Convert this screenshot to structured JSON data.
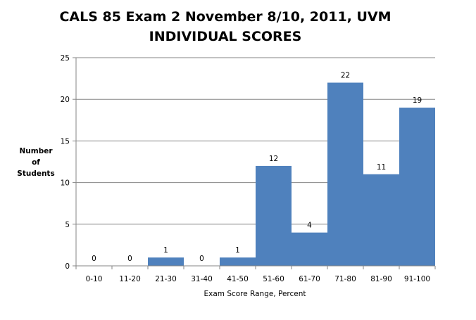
{
  "chart_data": {
    "type": "bar",
    "title_lines": [
      "CALS 85 Exam 2 November 8/10, 2011, UVM",
      "INDIVIDUAL SCORES"
    ],
    "xlabel": "Exam Score Range, Percent",
    "ylabel_lines": [
      "Number",
      "of",
      "Students"
    ],
    "categories": [
      "0-10",
      "11-20",
      "21-30",
      "31-40",
      "41-50",
      "51-60",
      "61-70",
      "71-80",
      "81-90",
      "91-100"
    ],
    "values": [
      0,
      0,
      1,
      0,
      1,
      12,
      4,
      22,
      11,
      19
    ],
    "ylim": [
      0,
      25
    ],
    "yticks": [
      0,
      5,
      10,
      15,
      20,
      25
    ],
    "grid": true,
    "legend": "none",
    "bar_color": "#4f81bd",
    "grid_color": "#868686"
  }
}
